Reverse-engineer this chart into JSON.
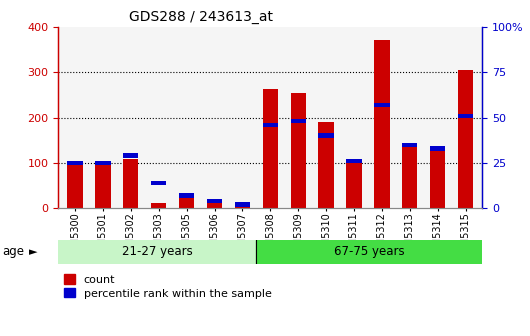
{
  "title": "GDS288 / 243613_at",
  "categories": [
    "GSM5300",
    "GSM5301",
    "GSM5302",
    "GSM5303",
    "GSM5305",
    "GSM5306",
    "GSM5307",
    "GSM5308",
    "GSM5309",
    "GSM5310",
    "GSM5311",
    "GSM5312",
    "GSM5313",
    "GSM5314",
    "GSM5315"
  ],
  "red_values": [
    95,
    97,
    108,
    12,
    22,
    14,
    9,
    262,
    255,
    190,
    100,
    370,
    145,
    130,
    305
  ],
  "blue_values_pct": [
    25,
    25,
    29,
    14,
    7,
    4,
    2,
    46,
    48,
    40,
    26,
    57,
    35,
    33,
    51
  ],
  "ylim_left": [
    0,
    400
  ],
  "ylim_right": [
    0,
    100
  ],
  "group1_label": "21-27 years",
  "group2_label": "67-75 years",
  "group1_color": "#c8f5c8",
  "group2_color": "#44dd44",
  "bar_color_red": "#cc0000",
  "bar_color_blue": "#0000cc",
  "age_label": "age",
  "legend_count": "count",
  "legend_pct": "percentile rank within the sample",
  "left_axis_color": "#cc0000",
  "right_axis_color": "#0000cc",
  "yticks_left": [
    0,
    100,
    200,
    300,
    400
  ],
  "yticks_right": [
    0,
    25,
    50,
    75,
    100
  ],
  "plot_bg": "#f0f0f0"
}
